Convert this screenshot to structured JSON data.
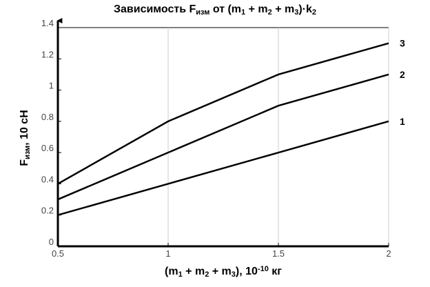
{
  "chart_data": {
    "type": "line",
    "title": [
      {
        "text": "Зависимость F"
      },
      {
        "text": "изм",
        "sub": true
      },
      {
        "text": " от (m"
      },
      {
        "text": "1",
        "sub": true
      },
      {
        "text": " + m"
      },
      {
        "text": "2",
        "sub": true
      },
      {
        "text": " + m"
      },
      {
        "text": "3",
        "sub": true
      },
      {
        "text": ")·k"
      },
      {
        "text": "2",
        "sub": true
      }
    ],
    "xlabel": [
      {
        "text": "(m"
      },
      {
        "text": "1",
        "sub": true
      },
      {
        "text": " + m"
      },
      {
        "text": "2",
        "sub": true
      },
      {
        "text": " + m"
      },
      {
        "text": "3",
        "sub": true
      },
      {
        "text": "), 10"
      },
      {
        "text": "-10",
        "sup": true
      },
      {
        "text": " кг"
      }
    ],
    "ylabel": [
      {
        "text": "F"
      },
      {
        "text": "изм",
        "sub": true
      },
      {
        "text": ", 10 сН"
      }
    ],
    "x": [
      0.5,
      1,
      1.5,
      2
    ],
    "series": [
      {
        "name": "1",
        "color": "#000000",
        "values": [
          0.2,
          0.4,
          0.6,
          0.8
        ]
      },
      {
        "name": "2",
        "color": "#000000",
        "values": [
          0.3,
          0.6,
          0.9,
          1.1
        ]
      },
      {
        "name": "3",
        "color": "#000000",
        "values": [
          0.4,
          0.8,
          1.1,
          1.3
        ]
      }
    ],
    "xlim": [
      0.5,
      2
    ],
    "xticks": [
      0.5,
      1,
      1.5,
      2
    ],
    "ylim": [
      0,
      1.4
    ],
    "yticks": [
      0,
      0.2,
      0.4,
      0.6,
      0.8,
      1,
      1.2,
      1.4
    ],
    "xgrid": true
  }
}
